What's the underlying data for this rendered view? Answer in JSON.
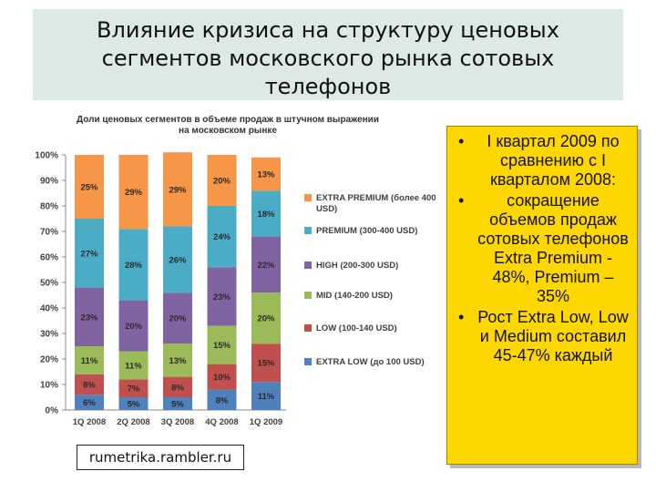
{
  "title_lines": [
    "Влияние кризиса на структуру ценовых",
    "сегментов московского рынка сотовых",
    "телефонов"
  ],
  "source": "rumetrika.rambler.ru",
  "notes": [
    "I квартал 2009 по сравнению с I кварталом 2008:",
    "сокращение объемов продаж сотовых телефонов Extra Premium - 48%, Premium – 35%",
    "Рост Extra Low, Low и Medium составил 45-47% каждый"
  ],
  "chart_data": {
    "type": "bar",
    "stacked": true,
    "title": "Доли ценовых сегментов в объеме продаж в штучном выражении на московском рынке",
    "title_lines": [
      "Доли ценовых сегментов в объеме продаж в штучном выражении",
      "на московском рынке"
    ],
    "categories": [
      "1Q 2008",
      "2Q 2008",
      "3Q 2008",
      "4Q 2008",
      "1Q 2009"
    ],
    "y_ticks": [
      "0%",
      "10%",
      "20%",
      "30%",
      "40%",
      "50%",
      "60%",
      "70%",
      "80%",
      "90%",
      "100%"
    ],
    "ylim": [
      0,
      100
    ],
    "legend_position": "right",
    "series": [
      {
        "name": "EXTRA LOW (до 100 USD)",
        "color": "#4f81bd",
        "values": [
          6,
          5,
          5,
          8,
          11
        ],
        "labels": [
          "6%",
          "5%",
          "5%",
          "8%",
          "11%"
        ]
      },
      {
        "name": "LOW (100-140 USD)",
        "color": "#c0504d",
        "values": [
          8,
          7,
          8,
          10,
          15
        ],
        "labels": [
          "8%",
          "7%",
          "8%",
          "10%",
          "15%"
        ]
      },
      {
        "name": "MID (140-200 USD)",
        "color": "#9bbb59",
        "values": [
          11,
          11,
          13,
          15,
          20
        ],
        "labels": [
          "11%",
          "11%",
          "13%",
          "15%",
          "20%"
        ]
      },
      {
        "name": "HIGH (200-300 USD)",
        "color": "#8064a2",
        "values": [
          23,
          20,
          20,
          23,
          22
        ],
        "labels": [
          "23%",
          "20%",
          "20%",
          "23%",
          "22%"
        ]
      },
      {
        "name": "PREMIUM (300-400 USD)",
        "color": "#4bacc6",
        "values": [
          27,
          28,
          26,
          24,
          18
        ],
        "labels": [
          "27%",
          "28%",
          "26%",
          "24%",
          "18%"
        ]
      },
      {
        "name": "EXTRA PREMIUM (более 400 USD)",
        "color": "#f79646",
        "values": [
          25,
          29,
          29,
          20,
          13
        ],
        "labels": [
          "25%",
          "29%",
          "29%",
          "20%",
          "13%"
        ]
      }
    ]
  }
}
